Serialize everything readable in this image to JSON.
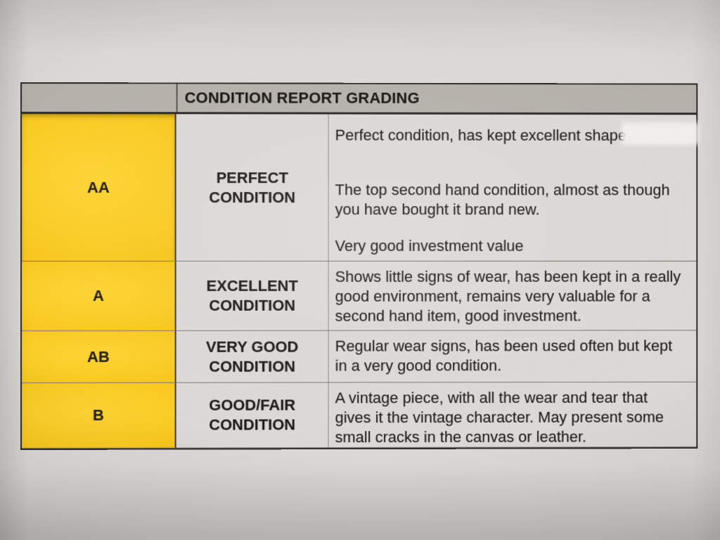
{
  "colors": {
    "paper": "#dbd9d6",
    "header_bar": "#b5b1aa",
    "grade_yellow": "#f9ca22",
    "text": "#1d1c19",
    "border_dark": "#2f2d2a",
    "row_line": "#7b7872"
  },
  "table": {
    "title": "CONDITION REPORT GRADING",
    "rows": [
      {
        "grade": "AA",
        "label": "PERFECT\nCONDITION",
        "paragraphs": [
          "Perfect condition, has kept excellent shape.",
          "The top second hand condition, almost as though you have bought it brand new.",
          "Very good investment value"
        ]
      },
      {
        "grade": "A",
        "label": "EXCELLENT\nCONDITION",
        "paragraphs": [
          "Shows little signs of wear, has been kept in a really good environment, remains very valuable for a second hand item, good investment."
        ]
      },
      {
        "grade": "AB",
        "label": "VERY GOOD\nCONDITION",
        "paragraphs": [
          "Regular wear signs, has been used often but kept in a very good condition."
        ]
      },
      {
        "grade": "B",
        "label": "GOOD/FAIR\nCONDITION",
        "paragraphs": [
          "A vintage piece, with all the wear and tear that gives it the vintage character. May present some small cracks in the canvas or leather."
        ]
      }
    ]
  }
}
